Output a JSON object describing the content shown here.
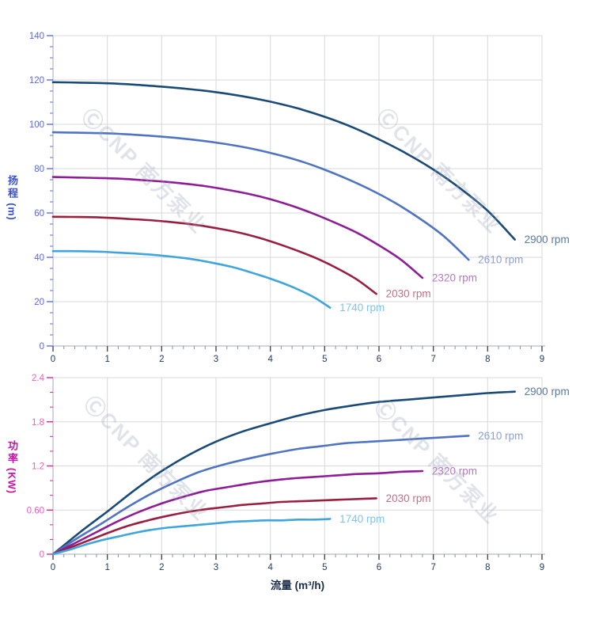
{
  "watermark": {
    "text": "ⒸCNP 南方泵业"
  },
  "colors": {
    "grid": "#d8d8df",
    "axis_line": "#c3c7d1",
    "x_tick_major": "#4a4a4a",
    "x_tick_minor": "#909090",
    "x_tick_text": "#253a5e",
    "head_tick": "#5a6ede",
    "head_tick_text": "#5d68dd",
    "head_title": "#3a4fd0",
    "power_tick": "#e01f9f",
    "power_tick_text": "#e960be",
    "power_title": "#c413a5"
  },
  "chart_data": [
    {
      "type": "line",
      "title": "",
      "xlabel": "",
      "ylabel": "扬程 (m)",
      "ylabel_cn": "扬程",
      "ylabel_unit": "(m)",
      "xlim": [
        0,
        9
      ],
      "ylim": [
        0,
        140
      ],
      "x_major_step": 1,
      "x_minor_step": 0.2,
      "y_major_step": 20,
      "y_minor_step": 5,
      "grid": true,
      "legend_position": "at-line-end",
      "x_tick_labels": [
        "0",
        "1",
        "2",
        "3",
        "4",
        "5",
        "6",
        "7",
        "8",
        "9"
      ],
      "y_tick_labels": [
        "0",
        "20",
        "40",
        "60",
        "80",
        "100",
        "120",
        "140"
      ],
      "series": [
        {
          "name": "2900 rpm",
          "color": "#1a4a78",
          "label_color": "#5c7a99",
          "points": [
            [
              0,
              119
            ],
            [
              0.5,
              118.8
            ],
            [
              1,
              118.5
            ],
            [
              1.5,
              117.9
            ],
            [
              2,
              117
            ],
            [
              2.5,
              115.9
            ],
            [
              3,
              114.5
            ],
            [
              3.5,
              112.6
            ],
            [
              4,
              110.2
            ],
            [
              4.5,
              107.2
            ],
            [
              5,
              103.4
            ],
            [
              5.5,
              98.8
            ],
            [
              6,
              93.2
            ],
            [
              6.5,
              86.9
            ],
            [
              7,
              79.6
            ],
            [
              7.5,
              71
            ],
            [
              8,
              61
            ],
            [
              8.5,
              48
            ]
          ]
        },
        {
          "name": "2610 rpm",
          "color": "#4f74c2",
          "label_color": "#8da0d6",
          "points": [
            [
              0,
              96.4
            ],
            [
              0.45,
              96.2
            ],
            [
              0.9,
              96
            ],
            [
              1.35,
              95.5
            ],
            [
              1.8,
              94.8
            ],
            [
              2.25,
              93.9
            ],
            [
              2.7,
              92.7
            ],
            [
              3.15,
              91.2
            ],
            [
              3.6,
              89.3
            ],
            [
              4.05,
              86.8
            ],
            [
              4.5,
              83.8
            ],
            [
              4.95,
              80
            ],
            [
              5.4,
              75.5
            ],
            [
              5.85,
              70.4
            ],
            [
              6.3,
              64.5
            ],
            [
              6.75,
              57.5
            ],
            [
              7.2,
              49.4
            ],
            [
              7.65,
              38.9
            ]
          ]
        },
        {
          "name": "2320 rpm",
          "color": "#8e1d96",
          "label_color": "#b678c4",
          "points": [
            [
              0,
              76.2
            ],
            [
              0.4,
              76
            ],
            [
              0.8,
              75.8
            ],
            [
              1.2,
              75.5
            ],
            [
              1.6,
              74.9
            ],
            [
              2,
              74.2
            ],
            [
              2.4,
              73.3
            ],
            [
              2.8,
              72.1
            ],
            [
              3.2,
              70.5
            ],
            [
              3.6,
              68.6
            ],
            [
              4,
              66.2
            ],
            [
              4.4,
              63.2
            ],
            [
              4.8,
              59.6
            ],
            [
              5.2,
              55.5
            ],
            [
              5.6,
              51
            ],
            [
              6,
              45.4
            ],
            [
              6.4,
              39
            ],
            [
              6.8,
              30.7
            ]
          ]
        },
        {
          "name": "2030 rpm",
          "color": "#9a1f3f",
          "label_color": "#c27088",
          "points": [
            [
              0,
              58.3
            ],
            [
              0.35,
              58.2
            ],
            [
              0.7,
              58.1
            ],
            [
              1.05,
              57.8
            ],
            [
              1.4,
              57.3
            ],
            [
              1.75,
              56.8
            ],
            [
              2.1,
              56.1
            ],
            [
              2.45,
              55.2
            ],
            [
              2.8,
              54
            ],
            [
              3.15,
              52.5
            ],
            [
              3.5,
              50.7
            ],
            [
              3.85,
              48.4
            ],
            [
              4.2,
              45.6
            ],
            [
              4.55,
              42.5
            ],
            [
              4.9,
              39
            ],
            [
              5.25,
              34.8
            ],
            [
              5.6,
              29.9
            ],
            [
              5.95,
              23.5
            ]
          ]
        },
        {
          "name": "1740 rpm",
          "color": "#3fa5dc",
          "label_color": "#7fc4ea",
          "points": [
            [
              0,
              42.8
            ],
            [
              0.3,
              42.8
            ],
            [
              0.6,
              42.7
            ],
            [
              0.9,
              42.5
            ],
            [
              1.2,
              42.1
            ],
            [
              1.5,
              41.7
            ],
            [
              1.8,
              41.2
            ],
            [
              2.1,
              40.5
            ],
            [
              2.4,
              39.7
            ],
            [
              2.7,
              38.6
            ],
            [
              3,
              37.2
            ],
            [
              3.3,
              35.6
            ],
            [
              3.6,
              33.5
            ],
            [
              3.9,
              31.2
            ],
            [
              4.2,
              28.6
            ],
            [
              4.5,
              25.6
            ],
            [
              4.8,
              22
            ],
            [
              5.1,
              17.3
            ]
          ]
        }
      ]
    },
    {
      "type": "line",
      "title": "",
      "xlabel": "流量 (m³/h)",
      "ylabel": "功率 (KW)",
      "ylabel_cn": "功率",
      "ylabel_unit": "(KW)",
      "xlim": [
        0,
        9
      ],
      "ylim": [
        0,
        2.4
      ],
      "x_major_step": 1,
      "x_minor_step": 0.2,
      "y_major_step": 0.6,
      "y_minor_step": 0.2,
      "grid": true,
      "legend_position": "at-line-end",
      "x_tick_labels": [
        "0",
        "1",
        "2",
        "3",
        "4",
        "5",
        "6",
        "7",
        "8",
        "9"
      ],
      "y_tick_labels": [
        "0",
        "0.60",
        "1.2",
        "1.8",
        "2.4"
      ],
      "series": [
        {
          "name": "2900 rpm",
          "color": "#1a4a78",
          "label_color": "#5c7a99",
          "points": [
            [
              0,
              0
            ],
            [
              0.5,
              0.3
            ],
            [
              1,
              0.58
            ],
            [
              1.5,
              0.87
            ],
            [
              2,
              1.13
            ],
            [
              2.5,
              1.35
            ],
            [
              3,
              1.53
            ],
            [
              3.5,
              1.67
            ],
            [
              4,
              1.78
            ],
            [
              4.5,
              1.88
            ],
            [
              5,
              1.96
            ],
            [
              5.5,
              2.02
            ],
            [
              6,
              2.07
            ],
            [
              6.5,
              2.1
            ],
            [
              7,
              2.13
            ],
            [
              7.5,
              2.16
            ],
            [
              8,
              2.19
            ],
            [
              8.5,
              2.21
            ]
          ]
        },
        {
          "name": "2610 rpm",
          "color": "#4f74c2",
          "label_color": "#8da0d6",
          "points": [
            [
              0,
              0
            ],
            [
              0.45,
              0.22
            ],
            [
              0.9,
              0.42
            ],
            [
              1.35,
              0.63
            ],
            [
              1.8,
              0.82
            ],
            [
              2.25,
              0.98
            ],
            [
              2.7,
              1.12
            ],
            [
              3.15,
              1.22
            ],
            [
              3.6,
              1.3
            ],
            [
              4.05,
              1.37
            ],
            [
              4.5,
              1.43
            ],
            [
              4.95,
              1.47
            ],
            [
              5.4,
              1.51
            ],
            [
              5.85,
              1.53
            ],
            [
              6.3,
              1.55
            ],
            [
              6.75,
              1.57
            ],
            [
              7.2,
              1.59
            ],
            [
              7.65,
              1.61
            ]
          ]
        },
        {
          "name": "2320 rpm",
          "color": "#8e1d96",
          "label_color": "#b678c4",
          "points": [
            [
              0,
              0
            ],
            [
              0.4,
              0.15
            ],
            [
              0.8,
              0.3
            ],
            [
              1.2,
              0.45
            ],
            [
              1.6,
              0.58
            ],
            [
              2,
              0.69
            ],
            [
              2.4,
              0.78
            ],
            [
              2.8,
              0.86
            ],
            [
              3.2,
              0.91
            ],
            [
              3.6,
              0.96
            ],
            [
              4,
              1
            ],
            [
              4.4,
              1.03
            ],
            [
              4.8,
              1.05
            ],
            [
              5.2,
              1.07
            ],
            [
              5.6,
              1.09
            ],
            [
              6,
              1.1
            ],
            [
              6.4,
              1.12
            ],
            [
              6.8,
              1.13
            ]
          ]
        },
        {
          "name": "2030 rpm",
          "color": "#9a1f3f",
          "label_color": "#c27088",
          "points": [
            [
              0,
              0
            ],
            [
              0.35,
              0.1
            ],
            [
              0.7,
              0.2
            ],
            [
              1.05,
              0.3
            ],
            [
              1.4,
              0.39
            ],
            [
              1.75,
              0.46
            ],
            [
              2.1,
              0.52
            ],
            [
              2.45,
              0.57
            ],
            [
              2.8,
              0.61
            ],
            [
              3.15,
              0.64
            ],
            [
              3.5,
              0.67
            ],
            [
              3.85,
              0.69
            ],
            [
              4.2,
              0.71
            ],
            [
              4.55,
              0.72
            ],
            [
              4.9,
              0.73
            ],
            [
              5.25,
              0.74
            ],
            [
              5.6,
              0.75
            ],
            [
              5.95,
              0.76
            ]
          ]
        },
        {
          "name": "1740 rpm",
          "color": "#3fa5dc",
          "label_color": "#7fc4ea",
          "points": [
            [
              0,
              0
            ],
            [
              0.3,
              0.06
            ],
            [
              0.6,
              0.13
            ],
            [
              0.9,
              0.19
            ],
            [
              1.2,
              0.24
            ],
            [
              1.5,
              0.29
            ],
            [
              1.8,
              0.33
            ],
            [
              2.1,
              0.36
            ],
            [
              2.4,
              0.38
            ],
            [
              2.7,
              0.4
            ],
            [
              3,
              0.42
            ],
            [
              3.3,
              0.44
            ],
            [
              3.6,
              0.45
            ],
            [
              3.9,
              0.46
            ],
            [
              4.2,
              0.46
            ],
            [
              4.5,
              0.47
            ],
            [
              4.8,
              0.47
            ],
            [
              5.1,
              0.48
            ]
          ]
        }
      ]
    }
  ]
}
